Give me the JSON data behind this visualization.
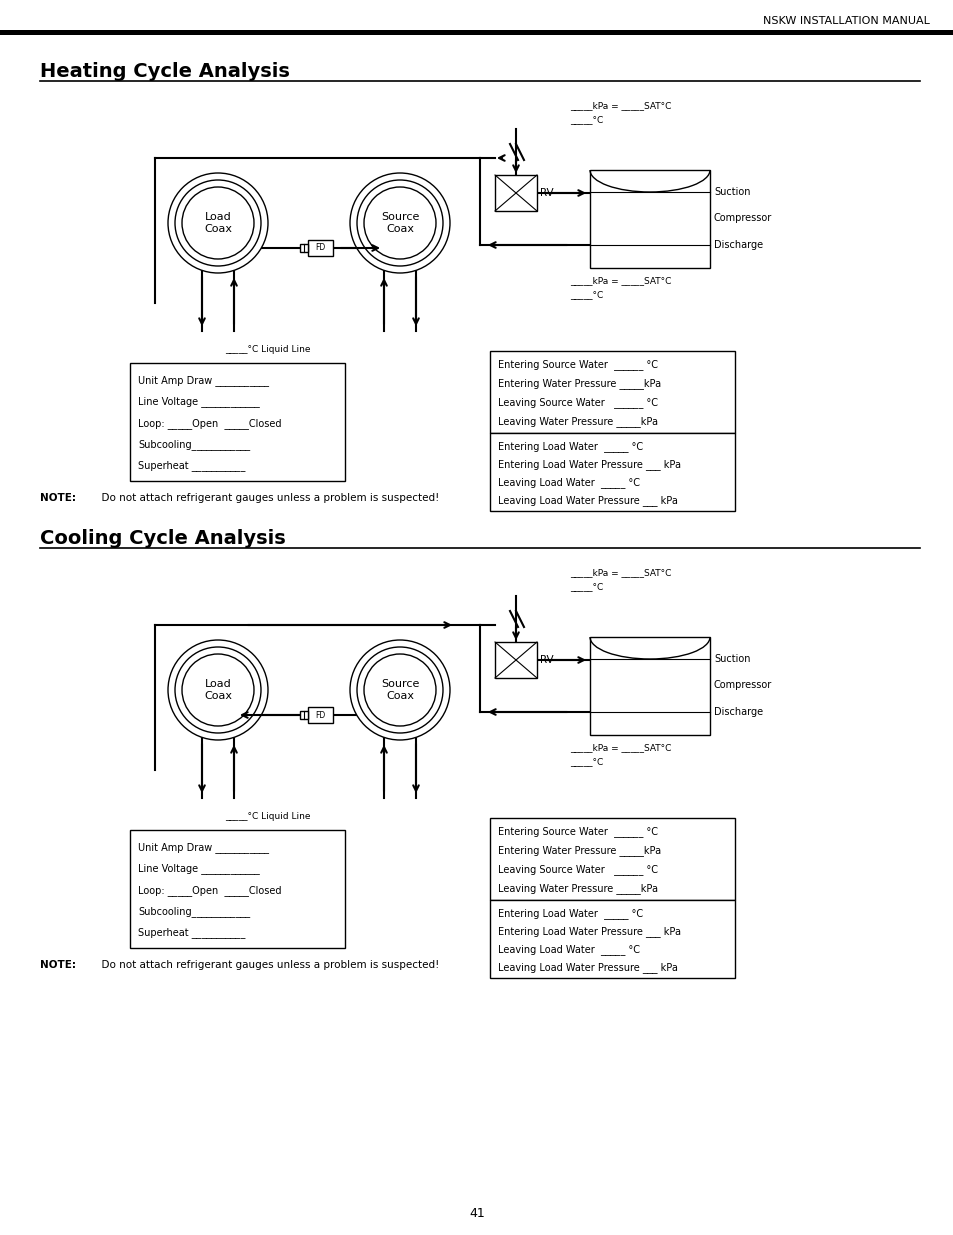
{
  "page_header": "NSKW INSTALLATION MANUAL",
  "background_color": "#ffffff",
  "page_number": "41",
  "section1_title": "Heating Cycle Analysis",
  "section2_title": "Cooling Cycle Analysis",
  "note_bold": "NOTE:",
  "note_text": "  Do not attach refrigerant gauges unless a problem is suspected!",
  "left_box_lines": [
    "Unit Amp Draw ___________",
    "Line Voltage ____________",
    "Loop: _____Open  _____Closed",
    "Subcooling____________",
    "Superheat ___________"
  ],
  "source_box_top_lines": [
    "Entering Source Water  ______ °C",
    "Entering Water Pressure _____kPa",
    "Leaving Source Water   ______ °C",
    "Leaving Water Pressure _____kPa"
  ],
  "source_box_bottom_lines": [
    "Entering Load Water  _____ °C",
    "Entering Load Water Pressure ___ kPa",
    "Leaving Load Water  _____ °C",
    "Leaving Load Water Pressure ___ kPa"
  ],
  "compressor_labels": [
    "Suction",
    "Compressor",
    "Discharge"
  ],
  "rv_label": "RV",
  "load_coax_label": "Load\nCoax",
  "source_coax_label": "Source\nCoax",
  "fd_label": "FD",
  "liquid_line_label": "_____°C Liquid Line",
  "top_pressure_label": "_____kPa = _____SAT°C",
  "top_temp_label": "_____°C",
  "bottom_pressure_label": "_____kPa = _____SAT°C",
  "bottom_temp_label": "_____°C"
}
